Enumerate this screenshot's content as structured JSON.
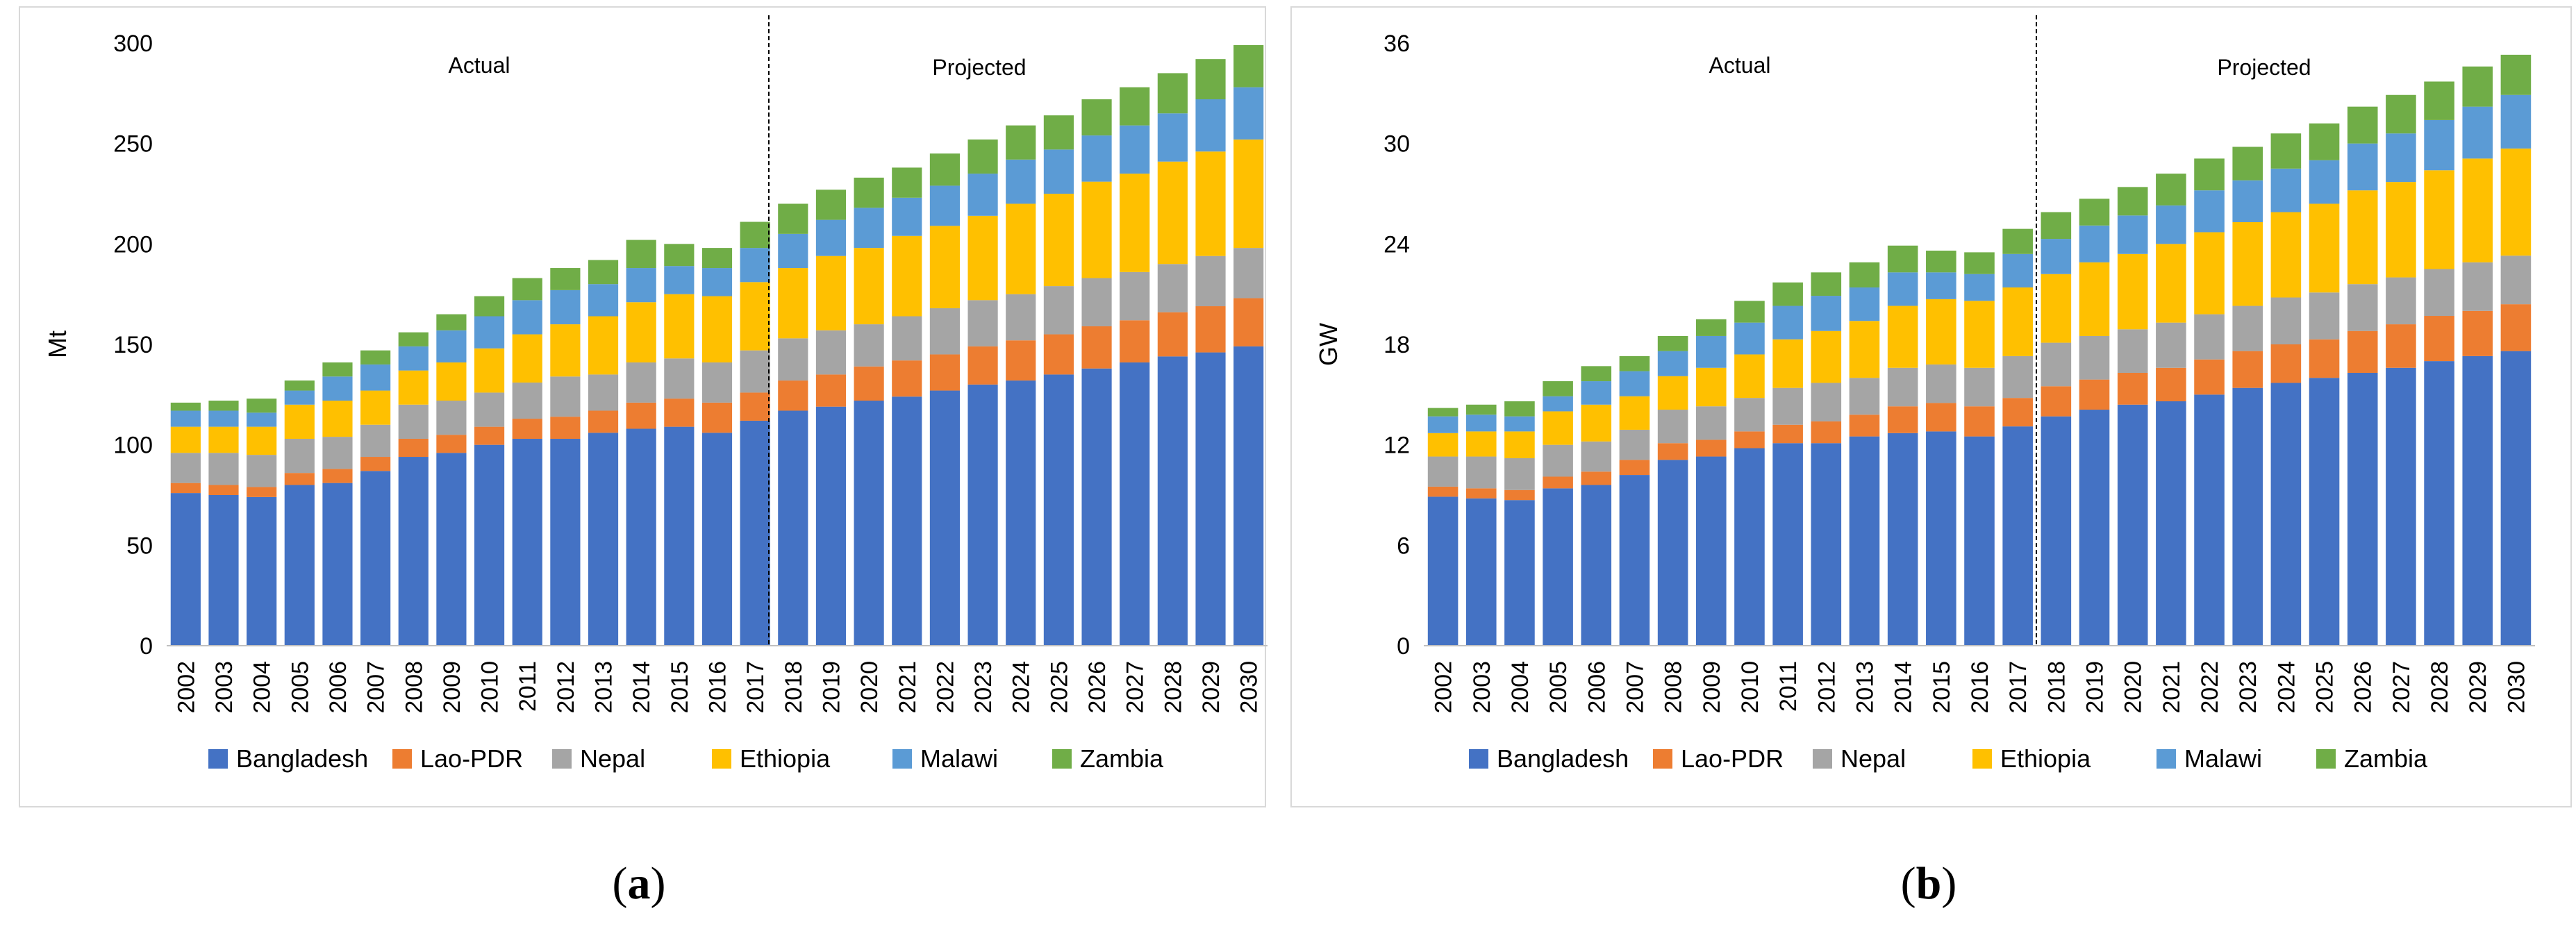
{
  "colors": {
    "Bangladesh": "#4472C4",
    "Lao-PDR": "#ED7D31",
    "Nepal": "#A5A5A5",
    "Ethiopia": "#FFC000",
    "Malawi": "#5B9BD5",
    "Zambia": "#70AD47"
  },
  "captions": [
    "a",
    "b"
  ],
  "chart_data": [
    {
      "type": "bar",
      "stacked": true,
      "panel": "a",
      "title": "",
      "xlabel": "",
      "ylabel": "Mt",
      "ylim": [
        0,
        300
      ],
      "yticks": [
        0,
        50,
        100,
        150,
        200,
        250,
        300
      ],
      "divider_after": "2017",
      "annotations": [
        "Actual",
        "Projected"
      ],
      "legend_position": "bottom",
      "categories": [
        "2002",
        "2003",
        "2004",
        "2005",
        "2006",
        "2007",
        "2008",
        "2009",
        "2010",
        "2011",
        "2012",
        "2013",
        "2014",
        "2015",
        "2016",
        "2017",
        "2018",
        "2019",
        "2020",
        "2021",
        "2022",
        "2023",
        "2024",
        "2025",
        "2026",
        "2027",
        "2028",
        "2029",
        "2030"
      ],
      "series": [
        {
          "name": "Bangladesh",
          "values": [
            76,
            75,
            74,
            80,
            81,
            87,
            94,
            96,
            100,
            103,
            103,
            106,
            108,
            109,
            106,
            112,
            117,
            119,
            122,
            124,
            127,
            130,
            132,
            135,
            138,
            141,
            144,
            146,
            149
          ]
        },
        {
          "name": "Lao-PDR",
          "values": [
            5,
            5,
            5,
            6,
            7,
            7,
            9,
            9,
            9,
            10,
            11,
            11,
            13,
            14,
            15,
            14,
            15,
            16,
            17,
            18,
            18,
            19,
            20,
            20,
            21,
            21,
            22,
            23,
            24
          ]
        },
        {
          "name": "Nepal",
          "values": [
            15,
            16,
            16,
            17,
            16,
            16,
            17,
            17,
            17,
            18,
            20,
            18,
            20,
            20,
            20,
            21,
            21,
            22,
            21,
            22,
            23,
            23,
            23,
            24,
            24,
            24,
            24,
            25,
            25
          ]
        },
        {
          "name": "Ethiopia",
          "values": [
            13,
            13,
            14,
            17,
            18,
            17,
            17,
            19,
            22,
            24,
            26,
            29,
            30,
            32,
            33,
            34,
            35,
            37,
            38,
            40,
            41,
            42,
            45,
            46,
            48,
            49,
            51,
            52,
            54
          ]
        },
        {
          "name": "Malawi",
          "values": [
            8,
            8,
            7,
            7,
            12,
            13,
            12,
            16,
            16,
            17,
            17,
            16,
            17,
            14,
            14,
            17,
            17,
            18,
            20,
            19,
            20,
            21,
            22,
            22,
            23,
            24,
            24,
            26,
            26
          ]
        },
        {
          "name": "Zambia",
          "values": [
            4,
            5,
            7,
            5,
            7,
            7,
            7,
            8,
            10,
            11,
            11,
            12,
            14,
            11,
            10,
            13,
            15,
            15,
            15,
            15,
            16,
            17,
            17,
            17,
            18,
            19,
            20,
            20,
            21
          ]
        }
      ]
    },
    {
      "type": "bar",
      "stacked": true,
      "panel": "b",
      "title": "",
      "xlabel": "",
      "ylabel": "GW",
      "ylim": [
        0,
        36
      ],
      "yticks": [
        0,
        6,
        12,
        18,
        24,
        30,
        36
      ],
      "divider_after": "2017",
      "annotations": [
        "Actual",
        "Projected"
      ],
      "legend_position": "bottom",
      "categories": [
        "2002",
        "2003",
        "2004",
        "2005",
        "2006",
        "2007",
        "2008",
        "2009",
        "2010",
        "2011",
        "2012",
        "2013",
        "2014",
        "2015",
        "2016",
        "2017",
        "2018",
        "2019",
        "2020",
        "2021",
        "2022",
        "2023",
        "2024",
        "2025",
        "2026",
        "2027",
        "2028",
        "2029",
        "2030"
      ],
      "series": [
        {
          "name": "Bangladesh",
          "values": [
            8.9,
            8.8,
            8.7,
            9.4,
            9.6,
            10.2,
            11.1,
            11.3,
            11.8,
            12.1,
            12.1,
            12.5,
            12.7,
            12.8,
            12.5,
            13.1,
            13.7,
            14.1,
            14.4,
            14.6,
            15.0,
            15.4,
            15.7,
            16.0,
            16.3,
            16.6,
            17.0,
            17.3,
            17.6
          ]
        },
        {
          "name": "Lao-PDR",
          "values": [
            0.6,
            0.6,
            0.6,
            0.7,
            0.8,
            0.9,
            1.0,
            1.0,
            1.0,
            1.1,
            1.3,
            1.3,
            1.6,
            1.7,
            1.8,
            1.7,
            1.8,
            1.8,
            1.9,
            2.0,
            2.1,
            2.2,
            2.3,
            2.3,
            2.5,
            2.6,
            2.7,
            2.7,
            2.8
          ]
        },
        {
          "name": "Nepal",
          "values": [
            1.8,
            1.9,
            1.9,
            1.9,
            1.8,
            1.8,
            2.0,
            2.0,
            2.0,
            2.2,
            2.3,
            2.2,
            2.3,
            2.3,
            2.3,
            2.5,
            2.6,
            2.6,
            2.6,
            2.7,
            2.7,
            2.7,
            2.8,
            2.8,
            2.8,
            2.8,
            2.8,
            2.9,
            2.9
          ]
        },
        {
          "name": "Ethiopia",
          "values": [
            1.4,
            1.5,
            1.6,
            2.0,
            2.2,
            2.0,
            2.0,
            2.3,
            2.6,
            2.9,
            3.1,
            3.4,
            3.7,
            3.9,
            4.0,
            4.1,
            4.1,
            4.4,
            4.5,
            4.7,
            4.9,
            5.0,
            5.1,
            5.3,
            5.6,
            5.7,
            5.9,
            6.2,
            6.4
          ]
        },
        {
          "name": "Malawi",
          "values": [
            1.0,
            1.0,
            0.9,
            0.9,
            1.4,
            1.5,
            1.5,
            1.9,
            1.9,
            2.0,
            2.1,
            2.0,
            2.0,
            1.6,
            1.6,
            2.0,
            2.1,
            2.2,
            2.3,
            2.3,
            2.5,
            2.5,
            2.6,
            2.6,
            2.8,
            2.9,
            3.0,
            3.1,
            3.2
          ]
        },
        {
          "name": "Zambia",
          "values": [
            0.5,
            0.6,
            0.9,
            0.9,
            0.9,
            0.9,
            0.9,
            1.0,
            1.3,
            1.4,
            1.4,
            1.5,
            1.6,
            1.3,
            1.3,
            1.5,
            1.6,
            1.6,
            1.7,
            1.9,
            1.9,
            2.0,
            2.1,
            2.2,
            2.2,
            2.3,
            2.3,
            2.4,
            2.4
          ]
        }
      ]
    }
  ]
}
